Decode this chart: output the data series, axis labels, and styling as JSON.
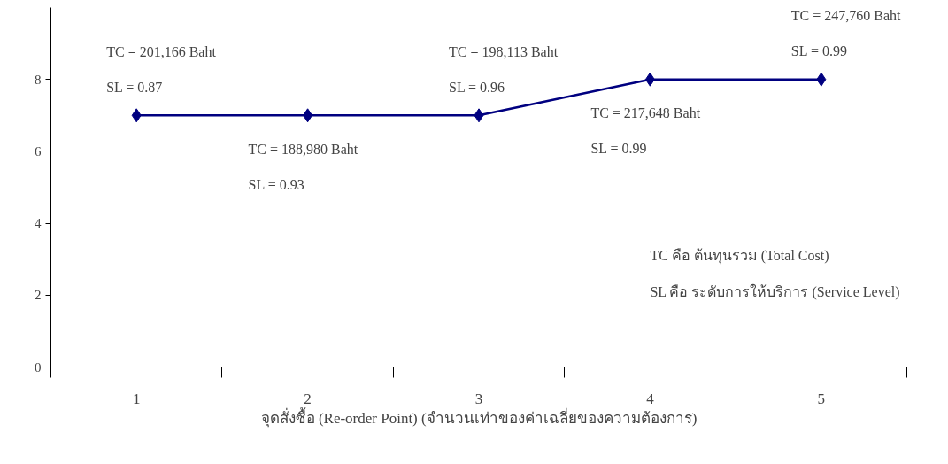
{
  "chart_data": {
    "type": "line",
    "xlabel": "จุดสั่งซื้อ (Re-order Point) (จำนวนเท่าของค่าเฉลี่ยของความต้องการ)",
    "categories": [
      "1",
      "2",
      "3",
      "4",
      "5"
    ],
    "series": [
      {
        "color": "#000080",
        "values": [
          7,
          7,
          7,
          8,
          8
        ]
      }
    ],
    "ylim": [
      0,
      10
    ],
    "yticks": [
      0,
      2,
      4,
      6,
      8
    ],
    "grid": false,
    "marker": "diamond",
    "line_style": "solid",
    "annotations": [
      "TC = 201,166 Baht",
      "SL = 0.87",
      "TC = 188,980 Baht",
      "SL = 0.93",
      "TC = 198,113 Baht",
      "SL = 0.96",
      "TC = 217,648 Baht",
      "SL = 0.99",
      "TC = 247,760 Baht",
      "SL = 0.99",
      "TC คือ ต้นทุนรวม (Total Cost)",
      "SL คือ ระดับการให้บริการ (Service Level)"
    ]
  }
}
